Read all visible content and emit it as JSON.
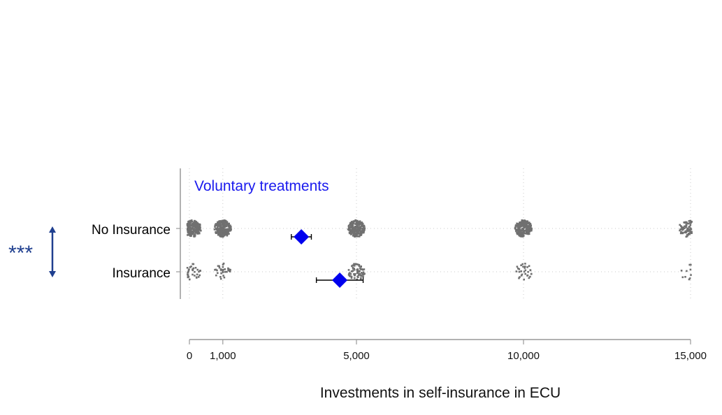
{
  "chart_data": {
    "type": "scatter",
    "title": "Voluntary treatments",
    "xlabel": "Investments in self-insurance in ECU",
    "ylabel": "",
    "xlim": [
      0,
      15000
    ],
    "x_ticks": [
      0,
      1000,
      5000,
      10000,
      15000
    ],
    "x_tick_labels": [
      "0",
      "1,000",
      "5,000",
      "10,000",
      "15,000"
    ],
    "categories": [
      "No Insurance",
      "Insurance"
    ],
    "grid": true,
    "series": [
      {
        "name": "No Insurance",
        "distribution_clusters": [
          {
            "x": 100,
            "density": "high"
          },
          {
            "x": 1000,
            "density": "high"
          },
          {
            "x": 5000,
            "density": "high"
          },
          {
            "x": 10000,
            "density": "high"
          },
          {
            "x": 14900,
            "density": "medium"
          }
        ],
        "mean": 3350,
        "ci": [
          3050,
          3650
        ]
      },
      {
        "name": "Insurance",
        "distribution_clusters": [
          {
            "x": 100,
            "density": "low"
          },
          {
            "x": 1000,
            "density": "low"
          },
          {
            "x": 5000,
            "density": "medium"
          },
          {
            "x": 10000,
            "density": "low"
          },
          {
            "x": 14950,
            "density": "very-low"
          }
        ],
        "mean": 4500,
        "ci": [
          3800,
          5200
        ]
      }
    ],
    "annotations": {
      "significance": "***"
    },
    "colors": {
      "points": "#707070",
      "mean_marker": "#0000ee",
      "title": "#1a1aee",
      "significance": "#1f3f8f",
      "axis": "#999999",
      "grid": "#c8c8c8"
    }
  }
}
